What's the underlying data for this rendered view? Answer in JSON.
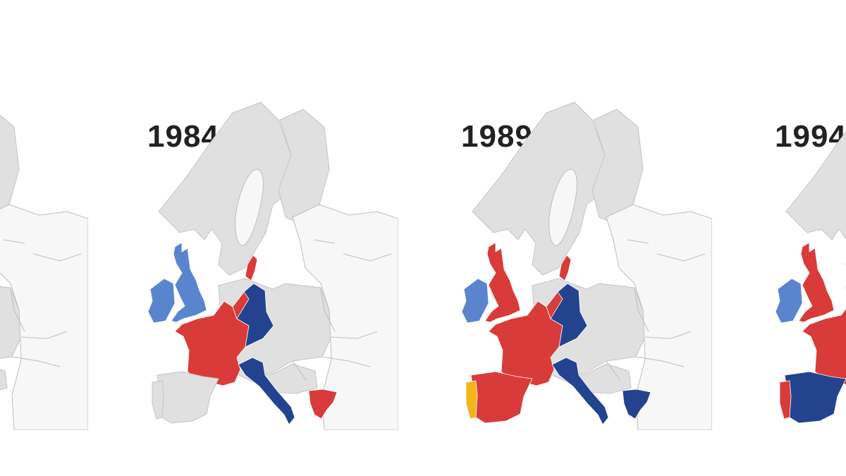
{
  "panels": [
    {
      "year": "",
      "countries": {
        "ireland": "none",
        "uk": "none",
        "france": "none",
        "germany": "none",
        "denmark": "none",
        "italy": "none",
        "greece": "none",
        "spain": "none",
        "portugal": "none",
        "benelux": "none"
      }
    },
    {
      "year": "1984",
      "countries": {
        "ireland": "light-blue",
        "uk": "light-blue",
        "france": "red",
        "germany": "navy",
        "denmark": "red",
        "italy": "navy",
        "greece": "red",
        "spain": "none",
        "portugal": "none",
        "benelux": "red"
      }
    },
    {
      "year": "1989",
      "countries": {
        "ireland": "light-blue",
        "uk": "red",
        "france": "red",
        "germany": "navy",
        "denmark": "red",
        "italy": "navy",
        "greece": "navy",
        "spain": "red",
        "portugal": "yellow",
        "benelux": "red"
      }
    },
    {
      "year": "1994",
      "countries": {
        "ireland": "light-blue",
        "uk": "red",
        "france": "red",
        "germany": "navy",
        "denmark": "red",
        "italy": "navy",
        "greece": "navy",
        "spain": "navy",
        "portugal": "red",
        "benelux": "red"
      }
    }
  ],
  "legend_colors": {
    "red": "#d93b3b",
    "navy": "#23438f",
    "light-blue": "#5b84cf",
    "yellow": "#f2b51a",
    "none": "#e0e0e0"
  }
}
